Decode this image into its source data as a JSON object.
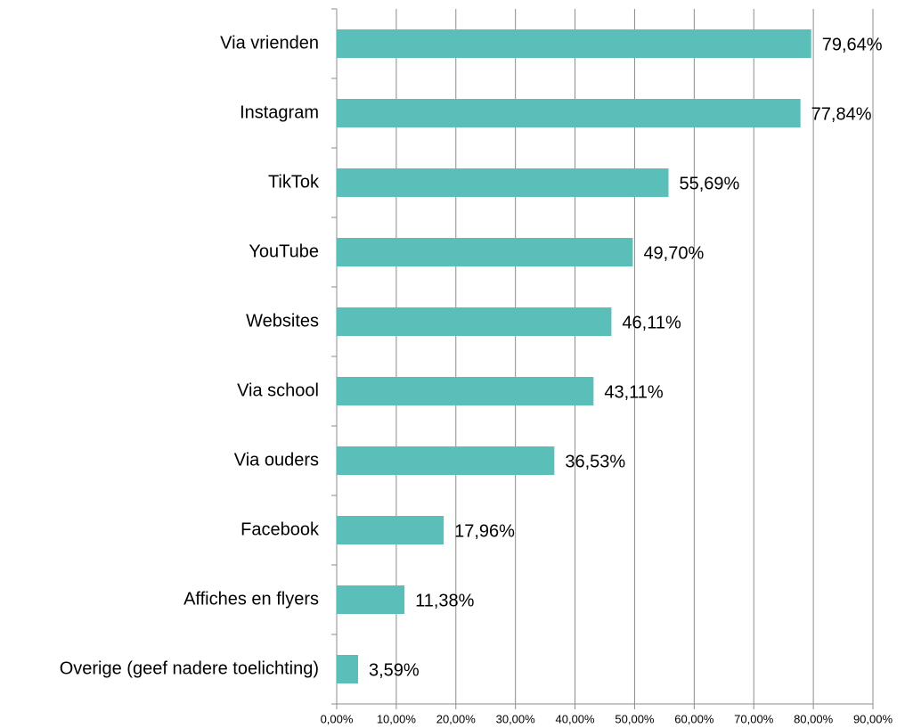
{
  "chart_data": {
    "type": "barh",
    "categories": [
      "Via vrienden",
      "Instagram",
      "TikTok",
      "YouTube",
      "Websites",
      "Via school",
      "Via ouders",
      "Facebook",
      "Affiches en flyers",
      "Overige (geef nadere toelichting)"
    ],
    "values": [
      79.64,
      77.84,
      55.69,
      49.7,
      46.11,
      43.11,
      36.53,
      17.96,
      11.38,
      3.59
    ],
    "value_labels": [
      "79,64%",
      "77,84%",
      "55,69%",
      "49,70%",
      "46,11%",
      "43,11%",
      "36,53%",
      "17,96%",
      "11,38%",
      "3,59%"
    ],
    "color": "#5bbfb9",
    "xlim": [
      0,
      90
    ],
    "xticks": [
      {
        "value": 0,
        "label": "0,00%"
      },
      {
        "value": 10,
        "label": "10,00%"
      },
      {
        "value": 20,
        "label": "20,00%"
      },
      {
        "value": 30,
        "label": "30,00%"
      },
      {
        "value": 40,
        "label": "40,00%"
      },
      {
        "value": 50,
        "label": "50,00%"
      },
      {
        "value": 60,
        "label": "60,00%"
      },
      {
        "value": 70,
        "label": "70,00%"
      },
      {
        "value": 80,
        "label": "80,00%"
      },
      {
        "value": 90,
        "label": "90,00%"
      }
    ],
    "grid": true
  }
}
